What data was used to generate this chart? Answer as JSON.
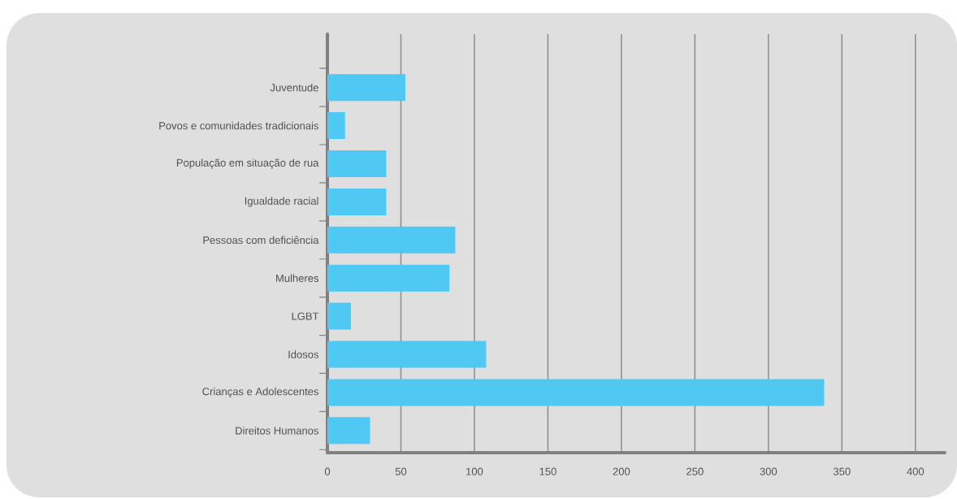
{
  "chart_data": {
    "type": "bar",
    "orientation": "horizontal",
    "categories": [
      "Juventude",
      "Povos e comunidades tradicionais",
      "População em situação de rua",
      "Igualdade racial",
      "Pessoas com deficiência",
      "Mulheres",
      "LGBT",
      "Idosos",
      "Crianças e Adolescentes",
      "Direitos Humanos"
    ],
    "values": [
      53,
      12,
      40,
      40,
      87,
      83,
      16,
      108,
      338,
      29
    ],
    "color": "#4fc8f3",
    "xlim": [
      0,
      420
    ],
    "xticks": [
      0,
      50,
      100,
      150,
      200,
      250,
      300,
      350,
      400
    ],
    "grid": "x"
  }
}
